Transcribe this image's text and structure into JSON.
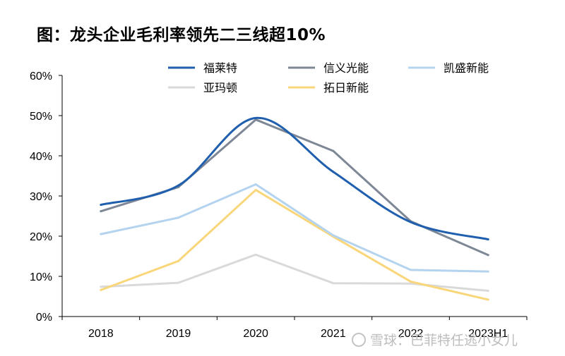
{
  "title": "图：龙头企业毛利率领先二三线超10%",
  "watermark": "雪球：巴菲特任逃小女儿",
  "chart_data": {
    "type": "line",
    "title": "图：龙头企业毛利率领先二三线超10%",
    "xlabel": "",
    "ylabel": "",
    "categories": [
      "2018",
      "2019",
      "2020",
      "2021",
      "2022",
      "2023H1"
    ],
    "ylim": [
      0,
      60
    ],
    "yticks": [
      0,
      10,
      20,
      30,
      40,
      50,
      60
    ],
    "ytick_labels": [
      "0%",
      "10%",
      "20%",
      "30%",
      "40%",
      "50%",
      "60%"
    ],
    "grid": false,
    "legend_position": "top",
    "series": [
      {
        "name": "福莱特",
        "color": "#1f5fae",
        "smooth": true,
        "values": [
          27.8,
          32.6,
          49.4,
          36.0,
          23.5,
          19.2
        ]
      },
      {
        "name": "信义光能",
        "color": "#7d8795",
        "smooth": false,
        "values": [
          26.2,
          32.2,
          49.0,
          41.2,
          23.7,
          15.3
        ]
      },
      {
        "name": "凯盛新能",
        "color": "#b4d3ee",
        "smooth": false,
        "values": [
          20.5,
          24.6,
          32.9,
          20.2,
          11.6,
          11.2
        ]
      },
      {
        "name": "亚玛顿",
        "color": "#d9d9d9",
        "smooth": false,
        "values": [
          7.4,
          8.4,
          15.4,
          8.3,
          8.2,
          6.4
        ]
      },
      {
        "name": "拓日新能",
        "color": "#f8d679",
        "smooth": false,
        "values": [
          6.6,
          13.8,
          31.5,
          19.9,
          8.7,
          4.2
        ]
      }
    ]
  }
}
